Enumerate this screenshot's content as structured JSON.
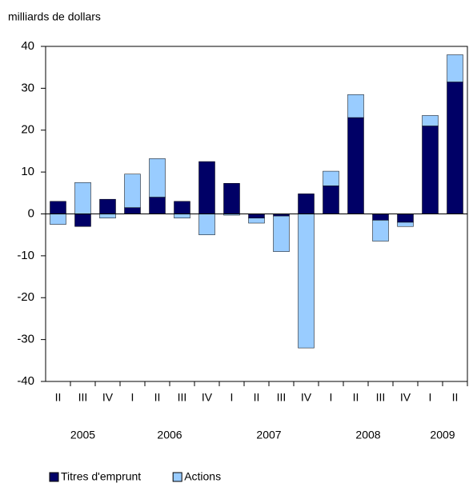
{
  "chart_data": {
    "type": "bar",
    "stacked": true,
    "y_label": "milliards de dollars",
    "categories": [
      "II",
      "III",
      "IV",
      "I",
      "II",
      "III",
      "IV",
      "I",
      "II",
      "III",
      "IV",
      "I",
      "II",
      "III",
      "IV",
      "I",
      "II"
    ],
    "years": [
      {
        "label": "2005",
        "span": 3
      },
      {
        "label": "2006",
        "span": 4
      },
      {
        "label": "2007",
        "span": 4
      },
      {
        "label": "2008",
        "span": 4
      },
      {
        "label": "2009",
        "span": 2
      }
    ],
    "series": [
      {
        "name": "Titres d'emprunt",
        "color": "#000066",
        "values": [
          3,
          -3,
          3.5,
          1.5,
          4,
          3,
          12.5,
          7.3,
          -1,
          -0.5,
          4.8,
          6.7,
          23,
          -1.5,
          -2,
          21,
          31.5
        ]
      },
      {
        "name": "Actions",
        "color": "#99ccff",
        "values": [
          -2.5,
          7.5,
          -1,
          8,
          9.2,
          -1,
          -5,
          -0.3,
          -1.2,
          -8.5,
          -32,
          3.5,
          5.5,
          -5,
          -1,
          2.5,
          6.5
        ]
      }
    ],
    "ylim": [
      -40,
      40
    ],
    "yticks": [
      -40,
      -30,
      -20,
      -10,
      0,
      10,
      20,
      30,
      40
    ],
    "grid": false,
    "legend": "bottom"
  }
}
